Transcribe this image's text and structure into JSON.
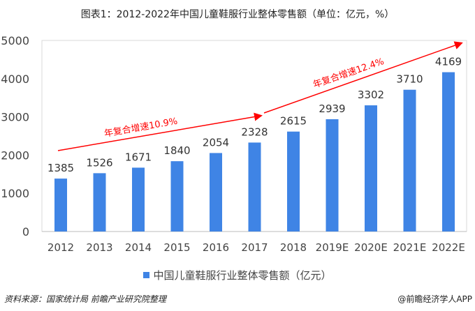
{
  "title": "图表1：2012-2022年中国儿童鞋服行业整体零售额（单位：亿元，%）",
  "chart_data": {
    "type": "bar",
    "categories": [
      "2012",
      "2013",
      "2014",
      "2015",
      "2016",
      "2017",
      "2018",
      "2019E",
      "2020E",
      "2021E",
      "2022E"
    ],
    "series": [
      {
        "name": "中国儿童鞋服行业整体零售额（亿元）",
        "values": [
          1385,
          1526,
          1671,
          1840,
          2054,
          2328,
          2615,
          2939,
          3302,
          3710,
          4169
        ]
      }
    ],
    "ylim": [
      0,
      5000
    ],
    "yticks": [
      0,
      1000,
      2000,
      3000,
      4000,
      5000
    ],
    "annotations": [
      "年复合增速10.9%",
      "年复合增速12.4%"
    ],
    "color": "#3f84e5",
    "legend": "bottom"
  },
  "footer": {
    "source": "资料来源：国家统计局 前瞻产业研究院整理",
    "brand": "@前瞻经济学人APP"
  }
}
